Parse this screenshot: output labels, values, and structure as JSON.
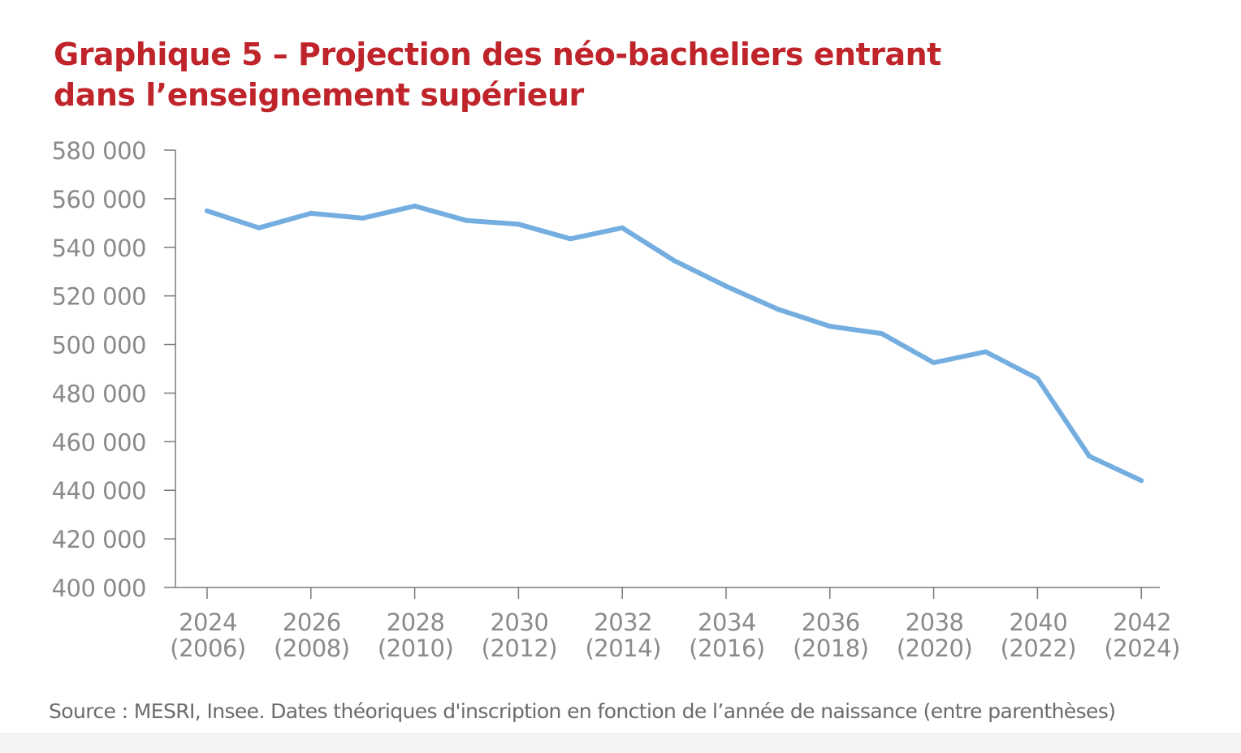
{
  "colors": {
    "title": "#c0242b",
    "line": "#74aee0",
    "axis": "#7a7a7a",
    "tick_text": "#8a8a8a",
    "source_text": "#6b6b6b"
  },
  "chart_data": {
    "type": "line",
    "title_line1": "Graphique 5 – Projection des néo-bacheliers entrant",
    "title_line2": "dans l’enseignement supérieur",
    "xlabel": "",
    "ylabel": "",
    "x": [
      2024,
      2025,
      2026,
      2027,
      2028,
      2029,
      2030,
      2031,
      2032,
      2033,
      2034,
      2035,
      2036,
      2037,
      2038,
      2039,
      2040,
      2041,
      2042
    ],
    "series": [
      {
        "name": "Néo-bacheliers entrant dans l’enseignement supérieur",
        "values": [
          555000,
          548000,
          554000,
          552000,
          557000,
          551000,
          549500,
          543500,
          548000,
          534500,
          524000,
          514500,
          507500,
          504500,
          492500,
          497000,
          486000,
          454000,
          444000
        ]
      }
    ],
    "ylim": [
      400000,
      580000
    ],
    "y_ticks": [
      400000,
      420000,
      440000,
      460000,
      480000,
      500000,
      520000,
      540000,
      560000,
      580000
    ],
    "y_tick_labels": [
      "400 000",
      "420 000",
      "440 000",
      "460 000",
      "480 000",
      "500 000",
      "520 000",
      "540 000",
      "560 000",
      "580 000"
    ],
    "x_ticks": [
      2024,
      2026,
      2028,
      2030,
      2032,
      2034,
      2036,
      2038,
      2040,
      2042
    ],
    "x_tick_labels": [
      [
        "2024",
        "(2006)"
      ],
      [
        "2026",
        "(2008)"
      ],
      [
        "2028",
        "(2010)"
      ],
      [
        "2030",
        "(2012)"
      ],
      [
        "2032",
        "(2014)"
      ],
      [
        "2034",
        "(2016)"
      ],
      [
        "2036",
        "(2018)"
      ],
      [
        "2038",
        "(2020)"
      ],
      [
        "2040",
        "(2022)"
      ],
      [
        "2042",
        "(2024)"
      ]
    ],
    "grid": false,
    "legend": "none"
  },
  "source": "Source : MESRI, Insee. Dates théoriques d'inscription en fonction de l’année de naissance (entre parenthèses)"
}
